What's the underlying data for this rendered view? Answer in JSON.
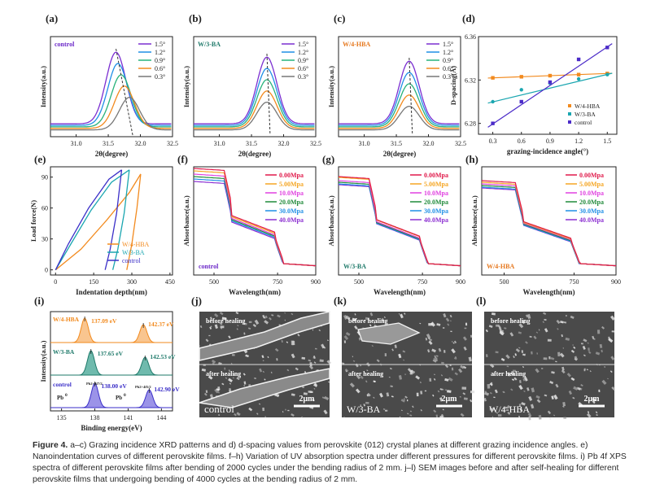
{
  "panel_letters": [
    "(a)",
    "(b)",
    "(c)",
    "(d)",
    "(e)",
    "(f)",
    "(g)",
    "(h)",
    "(i)",
    "(j)",
    "(k)",
    "(l)"
  ],
  "xrd": {
    "ylabel": "Intensity(a.u.)",
    "xlabel": "2θ(degree)",
    "ticks": [
      "31.0",
      "31.5",
      "32.0",
      "32.5"
    ],
    "legend": [
      "1.5°",
      "1.2°",
      "0.9°",
      "0.6°",
      "0.3°"
    ],
    "colors": [
      "#7b2fd1",
      "#1f8fe6",
      "#27b27a",
      "#f28a1e",
      "#777777"
    ],
    "samples": [
      "control",
      "W/3-BA",
      "W/4-HBA"
    ],
    "sample_colors": [
      "#6b28c8",
      "#1f7a6a",
      "#e6781e"
    ]
  },
  "dspacing": {
    "ylabel": "D-spacing(Å)",
    "xlabel": "grazing-incidence angle(°)",
    "yticks": [
      "6.36",
      "6.32",
      "6.28"
    ],
    "xticks": [
      "0.3",
      "0.6",
      "0.9",
      "1.2",
      "1.5"
    ],
    "legend": [
      "W/4-HBA",
      "W/3-BA",
      "control"
    ],
    "colors": [
      "#f28a1e",
      "#1aa6b0",
      "#4b2bc8"
    ]
  },
  "chart_data": [
    {
      "type": "scatter",
      "title": "(d)",
      "xlabel": "grazing-incidence angle(°)",
      "ylabel": "D-spacing(Å)",
      "ylim": [
        6.27,
        6.36
      ],
      "x": [
        0.3,
        0.6,
        0.9,
        1.2,
        1.5
      ],
      "series": [
        {
          "name": "W/4-HBA",
          "values": [
            6.322,
            6.323,
            6.324,
            6.325,
            6.326
          ]
        },
        {
          "name": "W/3-BA",
          "values": [
            6.3,
            6.311,
            6.317,
            6.321,
            6.325
          ]
        },
        {
          "name": "control",
          "values": [
            6.28,
            6.3,
            6.318,
            6.339,
            6.35
          ]
        }
      ]
    }
  ],
  "indent": {
    "ylabel": "Load force(N)",
    "xlabel": "Indentation depth(nm)",
    "yticks": [
      "0",
      "30",
      "60",
      "90"
    ],
    "xticks": [
      "0",
      "150",
      "300",
      "450"
    ],
    "legend": [
      "W/4-HBA",
      "W/3-BA",
      "control"
    ],
    "colors": [
      "#f28a1e",
      "#1aa6b0",
      "#3b2fc8"
    ]
  },
  "uv": {
    "ylabel": "Absorbance(a.u.)",
    "xlabel": "Wavelength(nm)",
    "xticks": [
      "500",
      "750",
      "900"
    ],
    "legend": [
      "0.00Mpa",
      "5.00Mpa",
      "10.0Mpa",
      "20.0Mpa",
      "30.0Mpa",
      "40.0Mpa"
    ],
    "colors": [
      "#e0194a",
      "#f5a623",
      "#e040e0",
      "#1f8a3a",
      "#1f8fe6",
      "#8b2fd1"
    ],
    "samples": [
      "control",
      "W/3-BA",
      "W/4-HBA"
    ]
  },
  "xps": {
    "ylabel": "Intensity(a.u.)",
    "xlabel": "Binding energy(eV)",
    "xticks": [
      "135",
      "138",
      "141",
      "144"
    ],
    "rows": [
      {
        "name": "W/4-HBA",
        "p1": "137.09 eV",
        "p2": "142.37 eV"
      },
      {
        "name": "W/3-BA",
        "p1": "137.65 eV",
        "p2": "142.53 eV"
      },
      {
        "name": "control",
        "p1": "138.00 eV",
        "p2": "142.90 eV"
      }
    ],
    "pb0": "Pb",
    "pb0_sup": "0",
    "pb72": "Pb2+4f7/2",
    "pb52": "Pb2+4f5/2"
  },
  "sem": {
    "before": "before healing",
    "after": "after healing",
    "scale": "2μm",
    "labels": [
      "control",
      "W/3-BA",
      "W/4-HBA"
    ]
  },
  "caption": {
    "bold": "Figure 4.",
    "text": " a–c) Grazing incidence XRD patterns and d) d-spacing values from perovskite (012) crystal planes at different grazing incidence angles. e) Nanoindentation curves of different perovskite films. f–h) Variation of UV absorption spectra under different pressures for different perovskite films. i) Pb 4f XPS spectra of different perovskite films after bending of 2000 cycles under the bending radius of 2 mm. j–l) SEM images before and after self-healing for different perovskite films that undergoing bending of 4000 cycles at the bending radius of 2 mm."
  }
}
